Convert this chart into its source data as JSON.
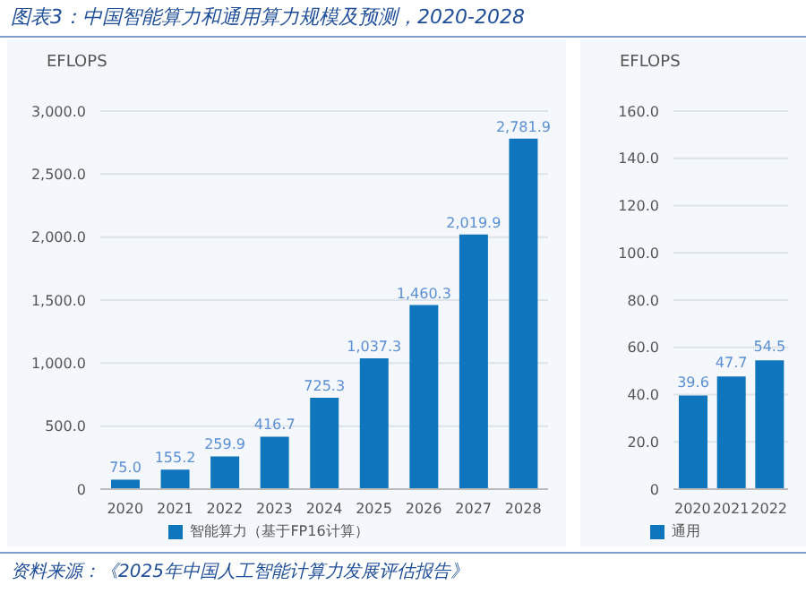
{
  "chart_data": [
    {
      "type": "bar",
      "title": "图表3：中国智能算力和通用算力规模及预测，2020-2028",
      "ylabel": "EFLOPS",
      "categories": [
        "2020",
        "2021",
        "2022",
        "2023",
        "2024",
        "2025",
        "2026",
        "2027",
        "2028"
      ],
      "series": [
        {
          "name": "智能算力（基于FP16计算）",
          "color": "#0f75bc",
          "values": [
            75.0,
            155.2,
            259.9,
            416.7,
            725.3,
            1037.3,
            1460.3,
            2019.9,
            2781.9
          ],
          "value_labels": [
            "75.0",
            "155.2",
            "259.9",
            "416.7",
            "725.3",
            "1,037.3",
            "1,460.3",
            "2,019.9",
            "2,781.9"
          ]
        }
      ],
      "ylim": [
        0,
        3000
      ],
      "yticks": [
        {
          "value": 0,
          "label": "0"
        },
        {
          "value": 500,
          "label": "500.0"
        },
        {
          "value": 1000,
          "label": "1,000.0"
        },
        {
          "value": 1500,
          "label": "1,500.0"
        },
        {
          "value": 2000,
          "label": "2,000.0"
        },
        {
          "value": 2500,
          "label": "2,500.0"
        },
        {
          "value": 3000,
          "label": "3,000.0"
        }
      ],
      "grid": "y",
      "legend": "bottom"
    },
    {
      "type": "bar",
      "ylabel": "EFLOPS",
      "categories": [
        "2020",
        "2021",
        "2022"
      ],
      "series": [
        {
          "name": "通用",
          "color": "#0f75bc",
          "values": [
            39.6,
            47.7,
            54.5
          ]
        }
      ],
      "ylim": [
        0,
        160
      ],
      "yticks": [
        {
          "value": 0,
          "label": "0"
        },
        {
          "value": 20,
          "label": "20.0"
        },
        {
          "value": 40,
          "label": "40.0"
        },
        {
          "value": 60,
          "label": "60.0"
        },
        {
          "value": 80,
          "label": "80.0"
        },
        {
          "value": 100,
          "label": "100.0"
        },
        {
          "value": 120,
          "label": "120.0"
        },
        {
          "value": 140,
          "label": "140.0"
        },
        {
          "value": 160,
          "label": "160.0"
        }
      ],
      "grid": "y",
      "legend": "bottom",
      "data_labels": true,
      "annotations": [
        "资料来源：《2025年中国人工智能计算力发展评估报告》"
      ]
    }
  ]
}
